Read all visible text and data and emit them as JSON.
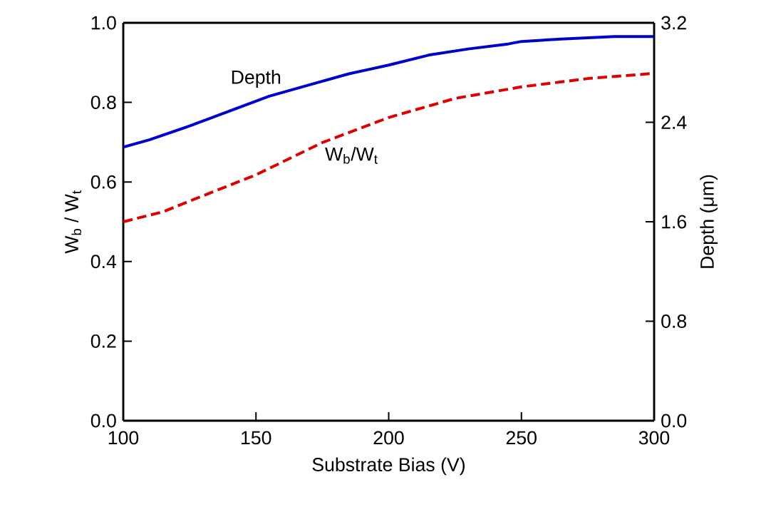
{
  "chart_data": {
    "type": "line",
    "xlabel": "Substrate Bias (V)",
    "ylabel": "W$_{b}$ / W$_{t}$",
    "y2label": "Depth (μm)",
    "xlim": [
      100,
      300
    ],
    "xticks": [
      100,
      150,
      200,
      250,
      300
    ],
    "ylim": [
      0,
      1
    ],
    "yticks": [
      {
        "value": 0,
        "label": "0.0"
      },
      {
        "value": 0.2,
        "label": "0.2"
      },
      {
        "value": 0.4,
        "label": "0.4"
      },
      {
        "value": 0.6,
        "label": "0.6"
      },
      {
        "value": 0.8,
        "label": "0.8"
      },
      {
        "value": 1,
        "label": "1.0"
      }
    ],
    "y2lim": [
      0,
      3.2
    ],
    "y2ticks": [
      {
        "value": 0,
        "label": "0.0"
      },
      {
        "value": 0.8,
        "label": "0.8"
      },
      {
        "value": 1.6,
        "label": "1.6"
      },
      {
        "value": 2.4,
        "label": "2.4"
      },
      {
        "value": 3.2,
        "label": "3.2"
      }
    ],
    "grid": false,
    "marker": "none",
    "series": [
      {
        "name": "Depth",
        "color": "#0000cc",
        "axis": "y2",
        "line_style": "solid",
        "x": [
          100,
          110,
          125,
          140,
          155,
          170,
          185,
          200,
          215,
          230,
          245,
          250,
          265,
          285,
          300
        ],
        "values": [
          2.2,
          2.26,
          2.37,
          2.49,
          2.61,
          2.7,
          2.79,
          2.86,
          2.94,
          2.99,
          3.03,
          3.05,
          3.07,
          3.09,
          3.09
        ]
      },
      {
        "name": "W$_{b}$/W$_{t}$",
        "color": "#dd0000",
        "axis": "y",
        "line_style": "dashed",
        "x": [
          100,
          115,
          125,
          150,
          175,
          200,
          225,
          250,
          275,
          300
        ],
        "values": [
          0.5,
          0.525,
          0.552,
          0.618,
          0.699,
          0.762,
          0.81,
          0.839,
          0.86,
          0.873
        ]
      }
    ]
  }
}
